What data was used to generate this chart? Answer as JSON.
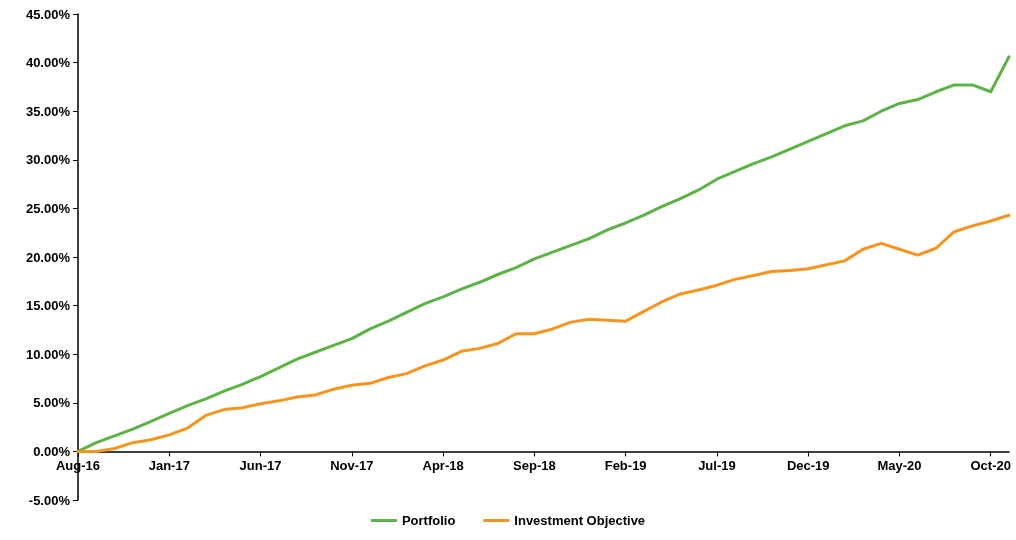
{
  "chart_data": {
    "type": "line",
    "categories": [
      "Aug-16",
      null,
      null,
      null,
      null,
      "Jan-17",
      null,
      null,
      null,
      null,
      "Jun-17",
      null,
      null,
      null,
      null,
      "Nov-17",
      null,
      null,
      null,
      null,
      "Apr-18",
      null,
      null,
      null,
      null,
      "Sep-18",
      null,
      null,
      null,
      null,
      "Feb-19",
      null,
      null,
      null,
      null,
      "Jul-19",
      null,
      null,
      null,
      null,
      "Dec-19",
      null,
      null,
      null,
      null,
      "May-20",
      null,
      null,
      null,
      null,
      "Oct-20",
      null
    ],
    "series": [
      {
        "name": "Portfolio",
        "color": "#5cb346",
        "values": [
          0,
          0.9,
          1.6,
          2.3,
          3.1,
          3.9,
          4.7,
          5.4,
          6.2,
          6.9,
          7.7,
          8.6,
          9.5,
          10.2,
          10.9,
          11.6,
          12.6,
          13.4,
          14.3,
          15.2,
          15.9,
          16.7,
          17.4,
          18.2,
          18.9,
          19.8,
          20.5,
          21.2,
          21.9,
          22.8,
          23.5,
          24.3,
          25.2,
          26.0,
          26.9,
          28.0,
          28.8,
          29.6,
          30.3,
          31.1,
          31.9,
          32.7,
          33.5,
          34.0,
          35.0,
          35.8,
          36.2,
          37.0,
          37.7,
          37.7,
          37.0,
          40.6
        ]
      },
      {
        "name": "Investment Objective",
        "color": "#f7941d",
        "values": [
          0,
          0,
          0.3,
          0.9,
          1.2,
          1.7,
          2.4,
          3.7,
          4.3,
          4.5,
          4.9,
          5.2,
          5.6,
          5.8,
          6.4,
          6.8,
          7.0,
          7.6,
          8.0,
          8.8,
          9.4,
          10.3,
          10.6,
          11.1,
          12.1,
          12.1,
          12.6,
          13.3,
          13.6,
          13.5,
          13.4,
          14.4,
          15.4,
          16.2,
          16.6,
          17.1,
          17.7,
          18.1,
          18.5,
          18.6,
          18.8,
          19.2,
          19.6,
          20.8,
          21.4,
          20.8,
          20.2,
          20.9,
          22.6,
          23.2,
          23.7,
          24.3
        ]
      }
    ],
    "ylim": [
      -5,
      45
    ],
    "yticks": [
      {
        "value": -5,
        "label": "-5.00%"
      },
      {
        "value": 0,
        "label": "0.00%"
      },
      {
        "value": 5,
        "label": "5.00%"
      },
      {
        "value": 10,
        "label": "10.00%"
      },
      {
        "value": 15,
        "label": "15.00%"
      },
      {
        "value": 20,
        "label": "20.00%"
      },
      {
        "value": 25,
        "label": "25.00%"
      },
      {
        "value": 30,
        "label": "30.00%"
      },
      {
        "value": 35,
        "label": "35.00%"
      },
      {
        "value": 40,
        "label": "40.00%"
      },
      {
        "value": 45,
        "label": "45.00%"
      }
    ],
    "grid": false,
    "legend": "bottom",
    "marker": "none",
    "line_style": "solid"
  }
}
